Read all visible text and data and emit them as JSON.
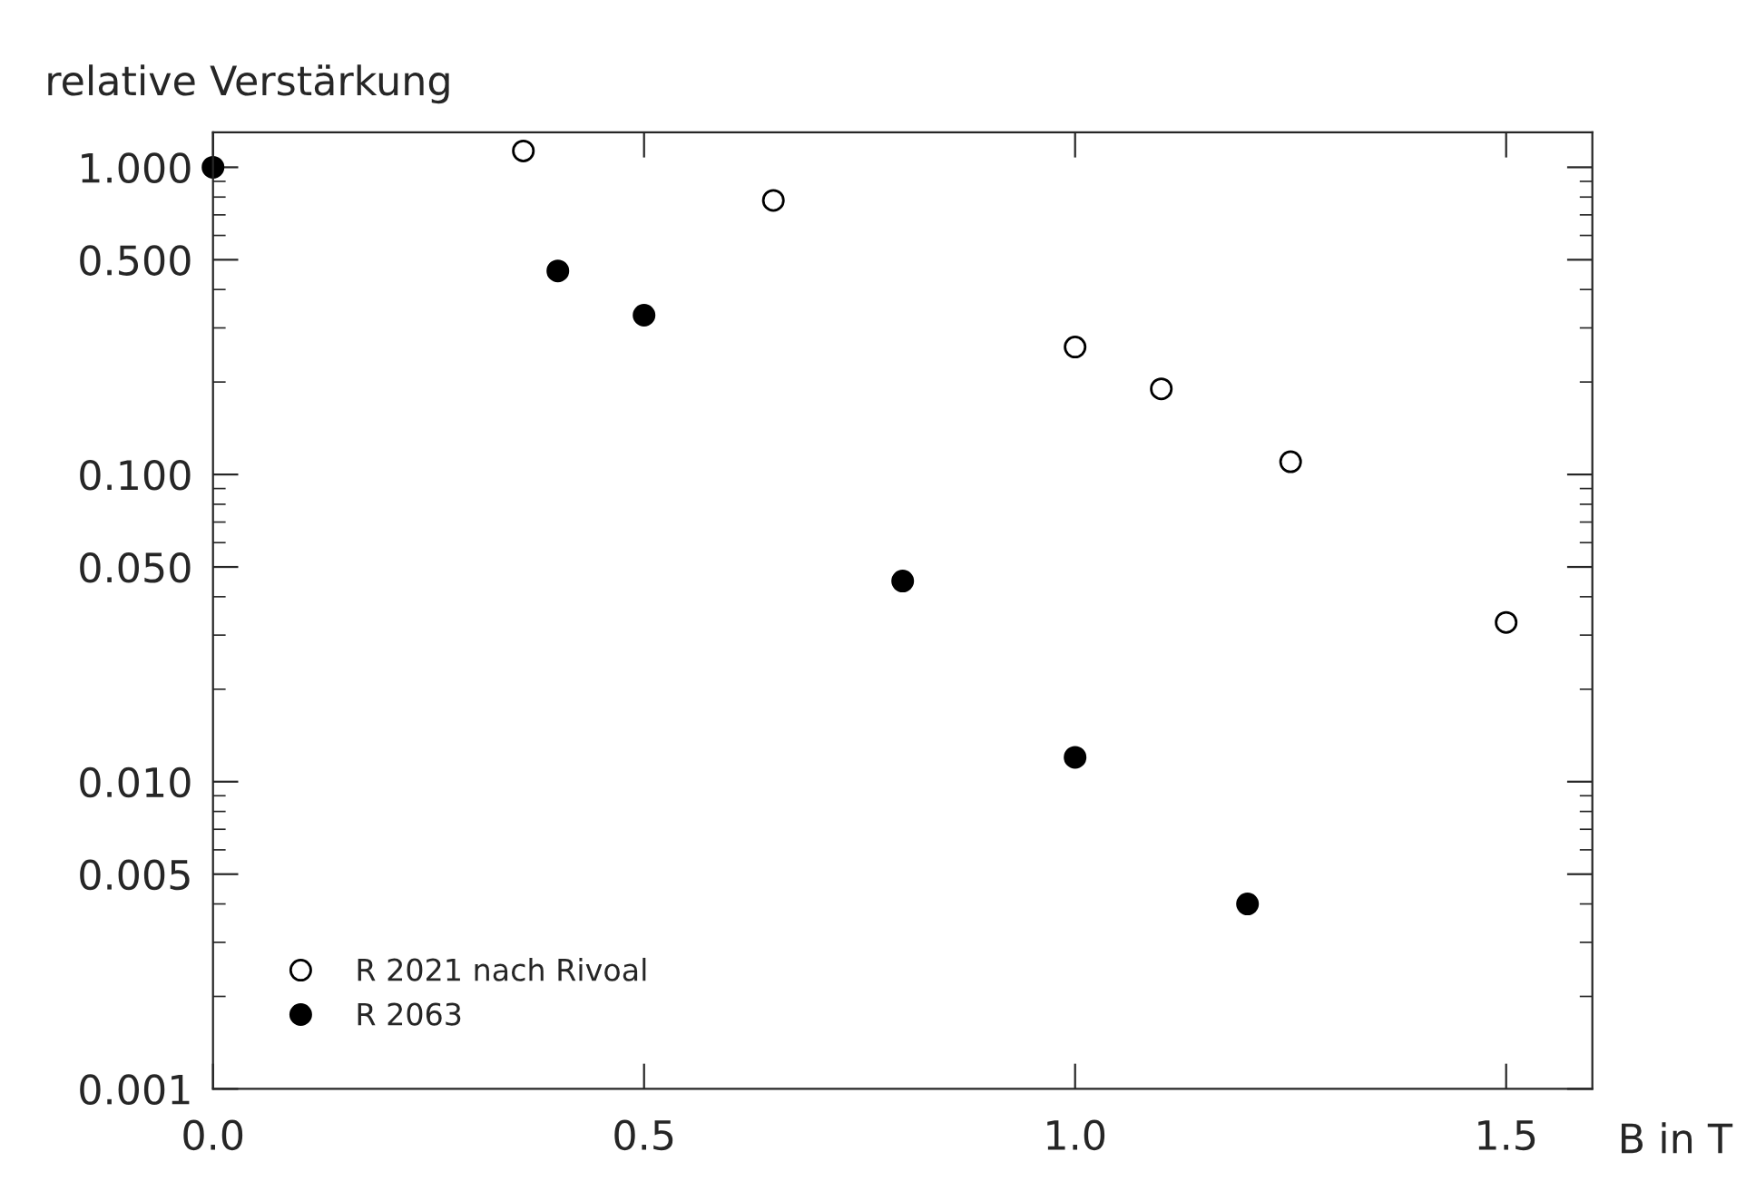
{
  "chart_data": {
    "type": "scatter",
    "ylabel": "relative Verstärkung",
    "xlabel": "B in T",
    "log": "y",
    "xlim": [
      0.0,
      1.6
    ],
    "xticks": [
      {
        "value": 0.0,
        "label": "0.0"
      },
      {
        "value": 0.5,
        "label": "0.5"
      },
      {
        "value": 1.0,
        "label": "1.0"
      },
      {
        "value": 1.5,
        "label": "1.5"
      }
    ],
    "ylim": [
      0.001,
      1.3
    ],
    "yticks": [
      {
        "value": 0.001,
        "label": "0.001"
      },
      {
        "value": 0.005,
        "label": "0.005"
      },
      {
        "value": 0.01,
        "label": "0.010"
      },
      {
        "value": 0.05,
        "label": "0.050"
      },
      {
        "value": 0.1,
        "label": "0.100"
      },
      {
        "value": 0.5,
        "label": "0.500"
      },
      {
        "value": 1.0,
        "label": "1.000"
      }
    ],
    "legend": "bottom left",
    "grid": false,
    "series": [
      {
        "name": "R 2021 nach Rivoal",
        "color": "#000000",
        "marker": "circle",
        "x": [
          0.36,
          0.65,
          1.0,
          1.1,
          1.25,
          1.5
        ],
        "values": [
          1.13,
          0.78,
          0.26,
          0.19,
          0.11,
          0.033
        ]
      },
      {
        "name": "R 2063",
        "color": "#000000",
        "marker": "circle",
        "x": [
          0.0,
          0.4,
          0.5,
          0.8,
          1.0,
          1.2
        ],
        "values": [
          1.0,
          0.46,
          0.33,
          0.045,
          0.012,
          0.004
        ]
      }
    ]
  }
}
